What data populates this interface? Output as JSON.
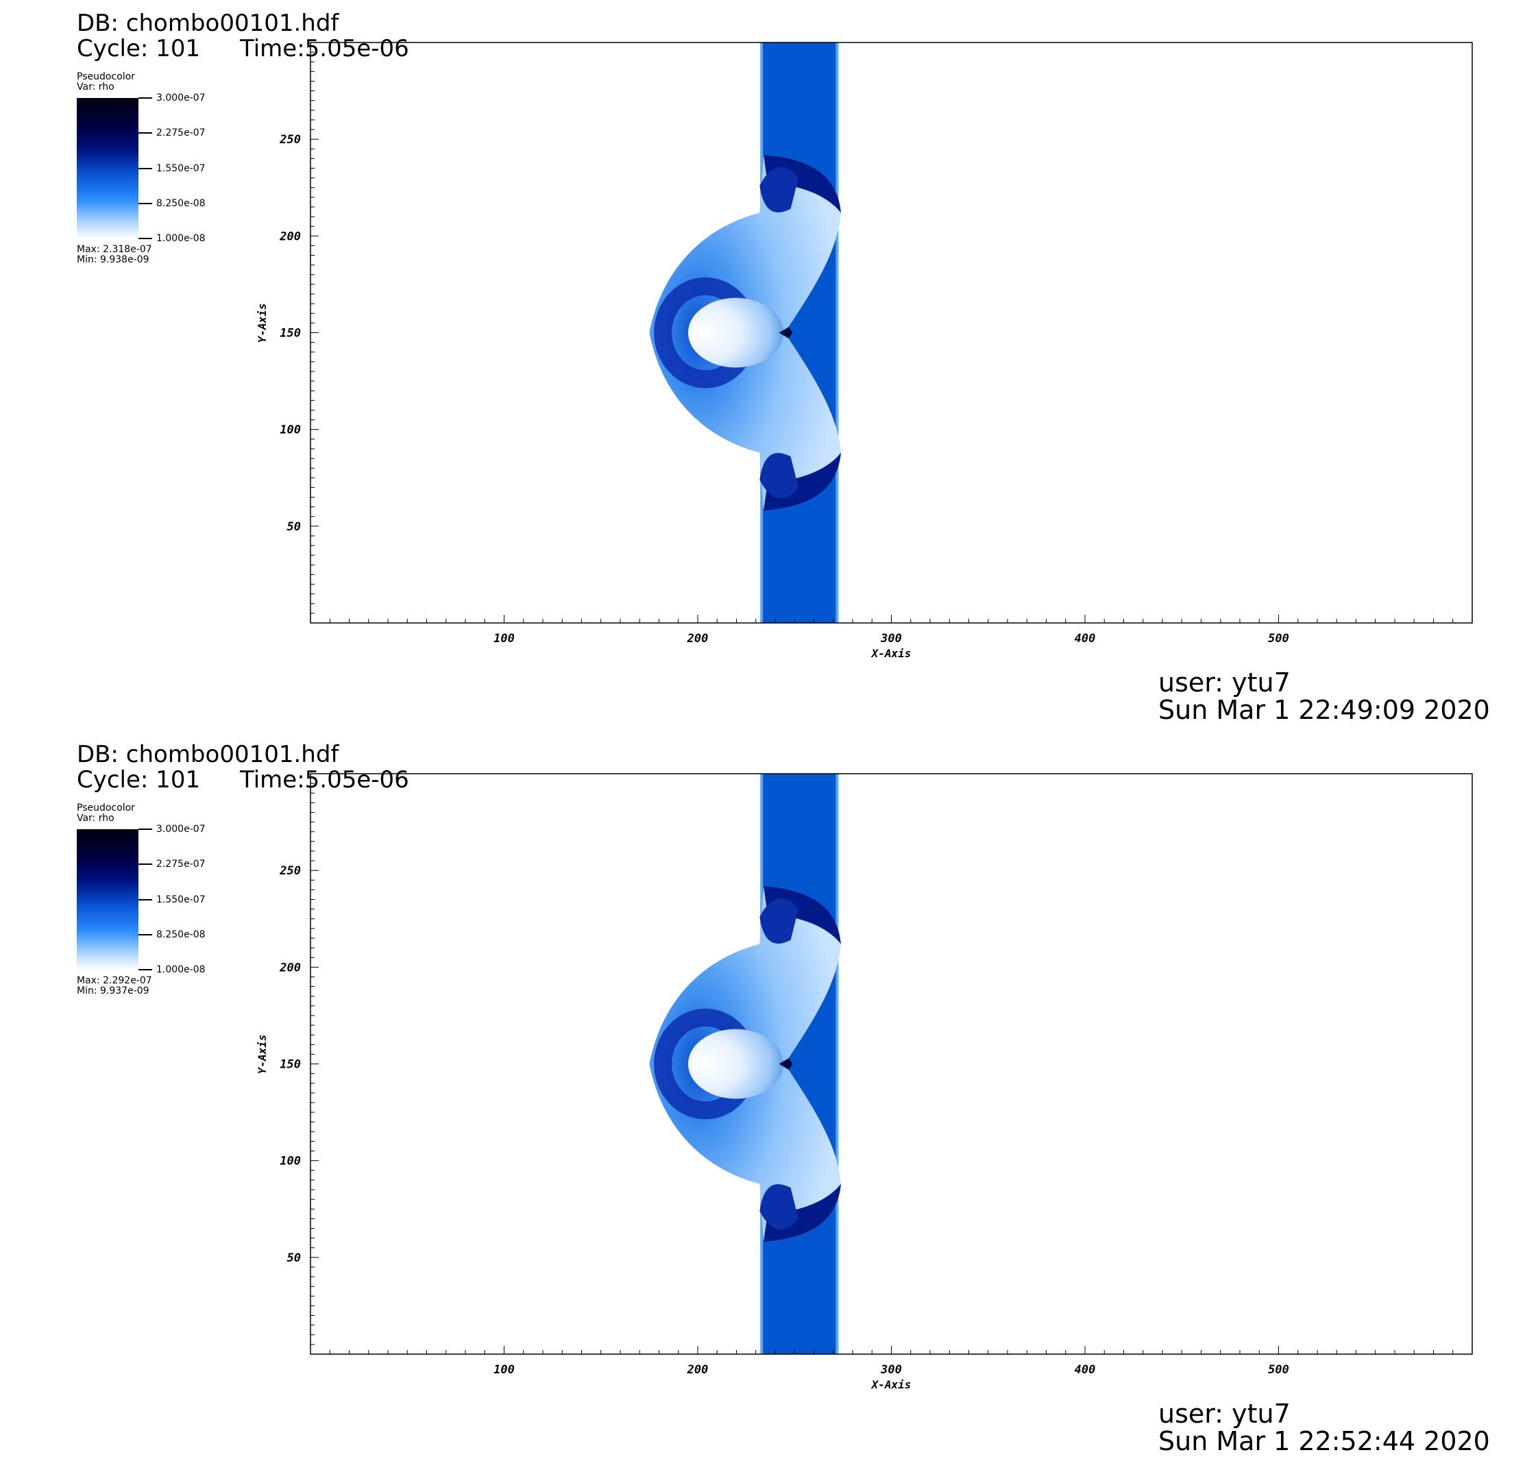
{
  "panels": [
    {
      "db_label": "DB: chombo00101.hdf",
      "cycle_label": "Cycle: 101",
      "time_label": "Time:5.05e-06",
      "legend_plot": "Pseudocolor",
      "legend_var": "Var: rho",
      "colorbar_labels": [
        "3.000e-07",
        "2.275e-07",
        "1.550e-07",
        "8.250e-08",
        "1.000e-08"
      ],
      "max_label": "Max: 2.318e-07",
      "min_label": "Min: 9.938e-09",
      "user_label": "user: ytu7",
      "date_label": "Sun Mar  1 22:49:09 2020"
    },
    {
      "db_label": "DB: chombo00101.hdf",
      "cycle_label": "Cycle: 101",
      "time_label": "Time:5.05e-06",
      "legend_plot": "Pseudocolor",
      "legend_var": "Var: rho",
      "colorbar_labels": [
        "3.000e-07",
        "2.275e-07",
        "1.550e-07",
        "8.250e-08",
        "1.000e-08"
      ],
      "max_label": "Max: 2.292e-07",
      "min_label": "Min: 9.937e-09",
      "user_label": "user: ytu7",
      "date_label": "Sun Mar  1 22:52:44 2020"
    }
  ],
  "chart_data": [
    {
      "type": "heatmap",
      "variable": "rho",
      "xlabel": "X-Axis",
      "ylabel": "Y-Axis",
      "xlim": [
        0,
        600
      ],
      "ylim": [
        0,
        300
      ],
      "xticks": [
        100,
        200,
        300,
        400,
        500
      ],
      "yticks": [
        50,
        100,
        150,
        200,
        250
      ],
      "colormap": [
        "#ffffff",
        "#2a8cff",
        "#0a56d6",
        "#00107e",
        "#000010"
      ],
      "color_range": [
        1e-08,
        3e-07
      ],
      "max": 2.318e-07,
      "min": 9.938e-09,
      "features": {
        "slab": {
          "x_range": [
            233,
            272
          ],
          "y_range": [
            0,
            300
          ],
          "rho": 1.3e-07
        },
        "bow_shock": {
          "x_left": 175,
          "x_right": 275,
          "y_bottom": 58,
          "y_top": 242
        },
        "core": {
          "x_range": [
            200,
            245
          ],
          "y_range": [
            132,
            168
          ]
        },
        "cusp": {
          "x": 245,
          "y": 150
        }
      },
      "grid": false
    },
    {
      "type": "heatmap",
      "variable": "rho",
      "xlabel": "X-Axis",
      "ylabel": "Y-Axis",
      "xlim": [
        0,
        600
      ],
      "ylim": [
        0,
        300
      ],
      "xticks": [
        100,
        200,
        300,
        400,
        500
      ],
      "yticks": [
        50,
        100,
        150,
        200,
        250
      ],
      "colormap": [
        "#ffffff",
        "#2a8cff",
        "#0a56d6",
        "#00107e",
        "#000010"
      ],
      "color_range": [
        1e-08,
        3e-07
      ],
      "max": 2.292e-07,
      "min": 9.937e-09,
      "features": {
        "slab": {
          "x_range": [
            233,
            272
          ],
          "y_range": [
            0,
            300
          ],
          "rho": 1.3e-07
        },
        "bow_shock": {
          "x_left": 175,
          "x_right": 275,
          "y_bottom": 58,
          "y_top": 242
        },
        "core": {
          "x_range": [
            200,
            245
          ],
          "y_range": [
            132,
            168
          ]
        },
        "cusp": {
          "x": 245,
          "y": 150
        }
      },
      "grid": false
    }
  ]
}
